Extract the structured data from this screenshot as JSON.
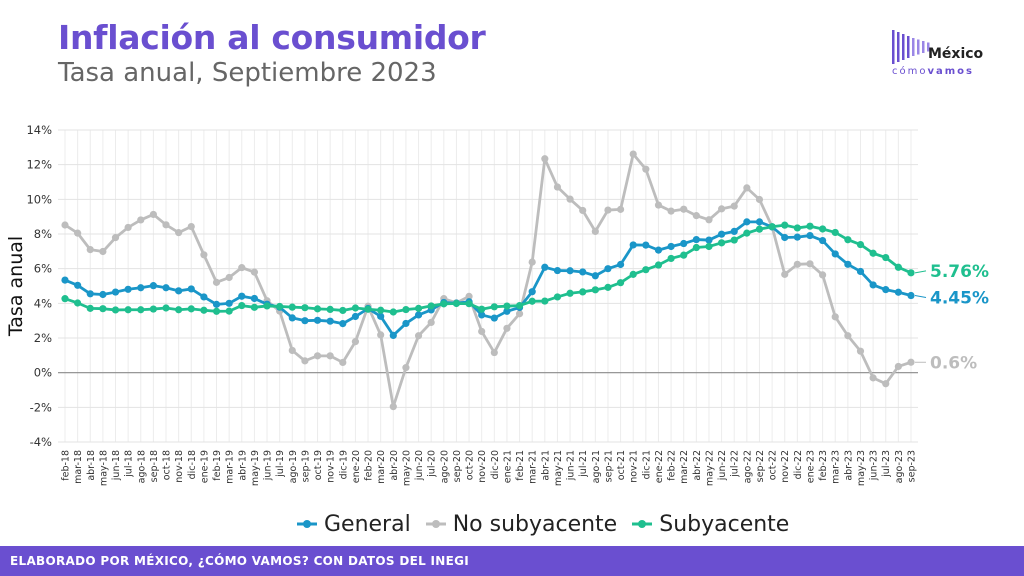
{
  "header": {
    "title": "Inflación al consumidor",
    "subtitle": "Tasa anual, Septiembre 2023"
  },
  "logo": {
    "name": "México",
    "tag_a": "cómo",
    "tag_b": "vamos"
  },
  "footer": {
    "text": "ELABORADO POR MÉXICO, ¿CÓMO VAMOS? CON DATOS DEL INEGI"
  },
  "colors": {
    "brand": "#6a4fd0",
    "general": "#1a96c8",
    "no_subyacente": "#bdbdbd",
    "subyacente": "#1fbf8f"
  },
  "chart_data": {
    "type": "line",
    "title": "Inflación al consumidor",
    "subtitle": "Tasa anual, Septiembre 2023",
    "xlabel": "",
    "ylabel": "Tasa anual",
    "ylim": [
      -4,
      14
    ],
    "yticks": [
      "14%",
      "12%",
      "10%",
      "8%",
      "6%",
      "4%",
      "2%",
      "0%",
      "-2%",
      "-4%"
    ],
    "grid": true,
    "legend_position": "bottom",
    "categories": [
      "feb-18",
      "mar-18",
      "abr-18",
      "may-18",
      "jun-18",
      "jul-18",
      "ago-18",
      "sep-18",
      "oct-18",
      "nov-18",
      "dic-18",
      "ene-19",
      "feb-19",
      "mar-19",
      "abr-19",
      "may-19",
      "jun-19",
      "jul-19",
      "ago-19",
      "sep-19",
      "oct-19",
      "nov-19",
      "dic-19",
      "ene-20",
      "feb-20",
      "mar-20",
      "abr-20",
      "may-20",
      "jun-20",
      "jul-20",
      "ago-20",
      "sep-20",
      "oct-20",
      "nov-20",
      "dic-20",
      "ene-21",
      "feb-21",
      "mar-21",
      "abr-21",
      "may-21",
      "jun-21",
      "jul-21",
      "ago-21",
      "sep-21",
      "oct-21",
      "nov-21",
      "dic-21",
      "ene-22",
      "feb-22",
      "mar-22",
      "abr-22",
      "may-22",
      "jun-22",
      "jul-22",
      "ago-22",
      "sep-22",
      "oct-22",
      "nov-22",
      "dic-22",
      "ene-23",
      "feb-23",
      "mar-23",
      "abr-23",
      "may-23",
      "jun-23",
      "jul-23",
      "ago-23",
      "sep-23"
    ],
    "series": [
      {
        "name": "General",
        "color": "#1a96c8",
        "end_label": "4.45%",
        "values": [
          5.34,
          5.04,
          4.55,
          4.51,
          4.65,
          4.81,
          4.9,
          5.02,
          4.9,
          4.72,
          4.83,
          4.37,
          3.94,
          4.0,
          4.41,
          4.28,
          3.95,
          3.78,
          3.16,
          3.0,
          3.02,
          2.97,
          2.83,
          3.24,
          3.7,
          3.25,
          2.15,
          2.84,
          3.33,
          3.62,
          4.05,
          4.01,
          4.09,
          3.33,
          3.15,
          3.54,
          3.76,
          4.67,
          6.08,
          5.89,
          5.88,
          5.81,
          5.59,
          6.0,
          6.24,
          7.37,
          7.36,
          7.07,
          7.28,
          7.45,
          7.68,
          7.65,
          7.99,
          8.15,
          8.7,
          8.7,
          8.41,
          7.8,
          7.82,
          7.91,
          7.62,
          6.85,
          6.25,
          5.84,
          5.06,
          4.79,
          4.64,
          4.45
        ]
      },
      {
        "name": "No subyacente",
        "color": "#bdbdbd",
        "end_label": "0.6%",
        "values": [
          8.52,
          8.05,
          7.1,
          6.99,
          7.79,
          8.38,
          8.81,
          9.13,
          8.53,
          8.08,
          8.43,
          6.8,
          5.21,
          5.49,
          6.06,
          5.8,
          4.15,
          3.55,
          1.28,
          0.68,
          0.97,
          0.97,
          0.59,
          1.79,
          3.83,
          2.18,
          -1.96,
          0.29,
          2.13,
          2.9,
          4.27,
          4.03,
          4.4,
          2.38,
          1.16,
          2.56,
          3.4,
          6.38,
          12.34,
          10.71,
          10.01,
          9.36,
          8.15,
          9.38,
          9.42,
          12.61,
          11.74,
          9.67,
          9.32,
          9.43,
          9.06,
          8.82,
          9.45,
          9.61,
          10.66,
          9.99,
          8.42,
          5.67,
          6.25,
          6.28,
          5.64,
          3.22,
          2.13,
          1.24,
          -0.3,
          -0.64,
          0.36,
          0.6
        ]
      },
      {
        "name": "Subyacente",
        "color": "#1fbf8f",
        "end_label": "5.76%",
        "values": [
          4.27,
          4.02,
          3.71,
          3.69,
          3.62,
          3.63,
          3.63,
          3.67,
          3.73,
          3.63,
          3.68,
          3.6,
          3.54,
          3.55,
          3.87,
          3.77,
          3.85,
          3.82,
          3.78,
          3.75,
          3.68,
          3.65,
          3.59,
          3.73,
          3.66,
          3.6,
          3.5,
          3.64,
          3.71,
          3.85,
          3.97,
          3.99,
          3.98,
          3.66,
          3.8,
          3.84,
          3.87,
          4.12,
          4.13,
          4.37,
          4.58,
          4.66,
          4.78,
          4.92,
          5.19,
          5.67,
          5.94,
          6.21,
          6.59,
          6.78,
          7.22,
          7.28,
          7.49,
          7.65,
          8.05,
          8.28,
          8.42,
          8.51,
          8.35,
          8.45,
          8.29,
          8.09,
          7.67,
          7.39,
          6.89,
          6.64,
          6.08,
          5.76
        ]
      }
    ]
  }
}
